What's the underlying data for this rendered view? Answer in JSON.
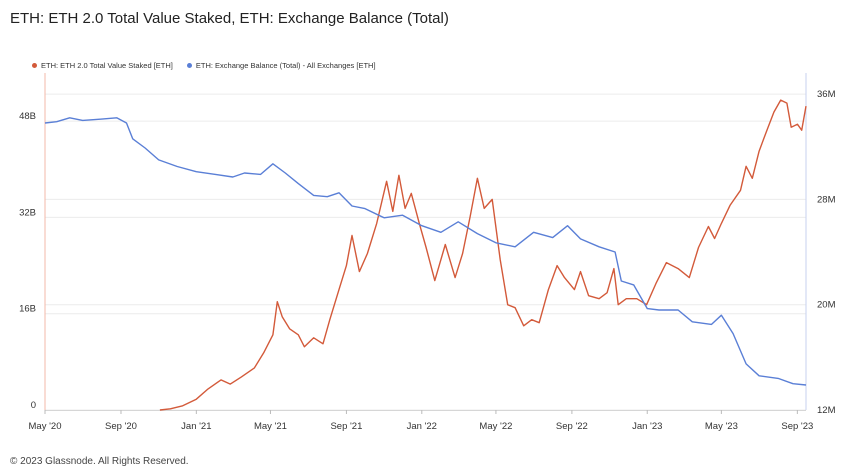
{
  "title": "ETH: ETH 2.0 Total Value Staked, ETH: Exchange Balance (Total)",
  "copyright": "© 2023 Glassnode. All Rights Reserved.",
  "colors": {
    "staked": "#d35a3a",
    "exchange": "#5a7fd6",
    "grid": "#ececec",
    "axis_line_left": "#f3b8a8",
    "axis_line_right": "#c7d1ef"
  },
  "chart_data": {
    "type": "line",
    "title": "ETH: ETH 2.0 Total Value Staked, ETH: Exchange Balance (Total)",
    "grid": true,
    "legend_placement": "top-left",
    "x_ticks": [
      "May '20",
      "Sep '20",
      "Jan '21",
      "May '21",
      "Sep '21",
      "Jan '22",
      "May '22",
      "Sep '22",
      "Jan '23",
      "May '23",
      "Sep '23"
    ],
    "xlim": [
      "2020-05-01",
      "2023-09-15"
    ],
    "y_left": {
      "ticks": [
        "0",
        "16B",
        "32B",
        "48B"
      ],
      "tick_values": [
        0,
        16,
        32,
        48
      ],
      "unit": "B",
      "ylim": [
        0,
        56
      ]
    },
    "y_right": {
      "ticks": [
        "12M",
        "20M",
        "28M",
        "36M"
      ],
      "tick_values": [
        12,
        20,
        28,
        36
      ],
      "unit": "M",
      "ylim": [
        12,
        37.6
      ]
    },
    "series": [
      {
        "name": "ETH: ETH 2.0 Total Value Staked [ETH]",
        "axis": "left",
        "points": [
          [
            "2020-11-03",
            0.0
          ],
          [
            "2020-11-20",
            0.2
          ],
          [
            "2020-12-10",
            0.7
          ],
          [
            "2021-01-01",
            1.8
          ],
          [
            "2021-01-20",
            3.5
          ],
          [
            "2021-02-10",
            5.0
          ],
          [
            "2021-02-25",
            4.3
          ],
          [
            "2021-03-15",
            5.5
          ],
          [
            "2021-04-05",
            7.0
          ],
          [
            "2021-04-20",
            9.5
          ],
          [
            "2021-05-05",
            12.5
          ],
          [
            "2021-05-12",
            18.0
          ],
          [
            "2021-05-20",
            15.5
          ],
          [
            "2021-06-01",
            13.5
          ],
          [
            "2021-06-15",
            12.5
          ],
          [
            "2021-06-25",
            10.5
          ],
          [
            "2021-07-10",
            12.0
          ],
          [
            "2021-07-25",
            11.0
          ],
          [
            "2021-08-05",
            15.0
          ],
          [
            "2021-08-20",
            20.0
          ],
          [
            "2021-09-01",
            24.0
          ],
          [
            "2021-09-10",
            29.0
          ],
          [
            "2021-09-22",
            23.0
          ],
          [
            "2021-10-05",
            26.0
          ],
          [
            "2021-10-20",
            31.0
          ],
          [
            "2021-11-05",
            38.0
          ],
          [
            "2021-11-15",
            33.0
          ],
          [
            "2021-11-25",
            39.0
          ],
          [
            "2021-12-05",
            33.5
          ],
          [
            "2021-12-15",
            36.0
          ],
          [
            "2021-12-28",
            31.0
          ],
          [
            "2022-01-08",
            27.0
          ],
          [
            "2022-01-22",
            21.5
          ],
          [
            "2022-02-08",
            27.5
          ],
          [
            "2022-02-24",
            22.0
          ],
          [
            "2022-03-08",
            26.0
          ],
          [
            "2022-03-20",
            32.0
          ],
          [
            "2022-04-01",
            38.5
          ],
          [
            "2022-04-12",
            33.5
          ],
          [
            "2022-04-25",
            35.0
          ],
          [
            "2022-05-08",
            25.0
          ],
          [
            "2022-05-20",
            17.5
          ],
          [
            "2022-06-01",
            17.0
          ],
          [
            "2022-06-15",
            14.0
          ],
          [
            "2022-06-28",
            15.0
          ],
          [
            "2022-07-10",
            14.5
          ],
          [
            "2022-07-25",
            20.0
          ],
          [
            "2022-08-08",
            24.0
          ],
          [
            "2022-08-20",
            22.0
          ],
          [
            "2022-09-05",
            20.0
          ],
          [
            "2022-09-15",
            23.0
          ],
          [
            "2022-09-28",
            19.0
          ],
          [
            "2022-10-15",
            18.5
          ],
          [
            "2022-10-28",
            19.5
          ],
          [
            "2022-11-08",
            23.5
          ],
          [
            "2022-11-15",
            17.5
          ],
          [
            "2022-11-28",
            18.5
          ],
          [
            "2022-12-15",
            18.5
          ],
          [
            "2022-12-31",
            17.5
          ],
          [
            "2023-01-15",
            21.0
          ],
          [
            "2023-02-01",
            24.5
          ],
          [
            "2023-02-20",
            23.5
          ],
          [
            "2023-03-10",
            22.0
          ],
          [
            "2023-03-25",
            27.0
          ],
          [
            "2023-04-10",
            30.5
          ],
          [
            "2023-04-20",
            28.5
          ],
          [
            "2023-05-01",
            31.0
          ],
          [
            "2023-05-15",
            34.0
          ],
          [
            "2023-06-01",
            36.5
          ],
          [
            "2023-06-10",
            40.5
          ],
          [
            "2023-06-20",
            38.5
          ],
          [
            "2023-07-01",
            43.0
          ],
          [
            "2023-07-12",
            46.0
          ],
          [
            "2023-07-25",
            49.5
          ],
          [
            "2023-08-05",
            51.5
          ],
          [
            "2023-08-15",
            51.0
          ],
          [
            "2023-08-22",
            47.0
          ],
          [
            "2023-09-01",
            47.5
          ],
          [
            "2023-09-08",
            46.5
          ],
          [
            "2023-09-15",
            50.5
          ]
        ]
      },
      {
        "name": "ETH: Exchange Balance (Total) - All Exchanges [ETH]",
        "axis": "right",
        "points": [
          [
            "2020-05-01",
            33.8
          ],
          [
            "2020-05-20",
            33.9
          ],
          [
            "2020-06-10",
            34.2
          ],
          [
            "2020-07-01",
            34.0
          ],
          [
            "2020-08-01",
            34.1
          ],
          [
            "2020-08-25",
            34.2
          ],
          [
            "2020-09-10",
            33.8
          ],
          [
            "2020-09-20",
            32.6
          ],
          [
            "2020-10-10",
            31.9
          ],
          [
            "2020-11-01",
            31.0
          ],
          [
            "2020-12-01",
            30.5
          ],
          [
            "2021-01-01",
            30.1
          ],
          [
            "2021-02-01",
            29.9
          ],
          [
            "2021-03-01",
            29.7
          ],
          [
            "2021-03-20",
            30.0
          ],
          [
            "2021-04-15",
            29.9
          ],
          [
            "2021-05-05",
            30.7
          ],
          [
            "2021-05-25",
            30.0
          ],
          [
            "2021-06-15",
            29.2
          ],
          [
            "2021-07-10",
            28.3
          ],
          [
            "2021-08-01",
            28.2
          ],
          [
            "2021-08-20",
            28.5
          ],
          [
            "2021-09-10",
            27.5
          ],
          [
            "2021-10-01",
            27.3
          ],
          [
            "2021-11-01",
            26.6
          ],
          [
            "2021-12-01",
            26.8
          ],
          [
            "2022-01-01",
            26.0
          ],
          [
            "2022-02-01",
            25.5
          ],
          [
            "2022-03-01",
            26.3
          ],
          [
            "2022-04-01",
            25.4
          ],
          [
            "2022-05-01",
            24.7
          ],
          [
            "2022-06-01",
            24.4
          ],
          [
            "2022-07-01",
            25.5
          ],
          [
            "2022-08-01",
            25.1
          ],
          [
            "2022-08-25",
            26.0
          ],
          [
            "2022-09-15",
            25.0
          ],
          [
            "2022-10-15",
            24.4
          ],
          [
            "2022-11-10",
            24.0
          ],
          [
            "2022-11-20",
            21.8
          ],
          [
            "2022-12-10",
            21.5
          ],
          [
            "2023-01-01",
            19.7
          ],
          [
            "2023-01-20",
            19.6
          ],
          [
            "2023-02-20",
            19.6
          ],
          [
            "2023-03-15",
            18.7
          ],
          [
            "2023-04-15",
            18.5
          ],
          [
            "2023-05-01",
            19.2
          ],
          [
            "2023-05-20",
            17.8
          ],
          [
            "2023-06-10",
            15.5
          ],
          [
            "2023-07-01",
            14.6
          ],
          [
            "2023-08-01",
            14.4
          ],
          [
            "2023-08-25",
            14.0
          ],
          [
            "2023-09-15",
            13.9
          ]
        ]
      }
    ]
  }
}
